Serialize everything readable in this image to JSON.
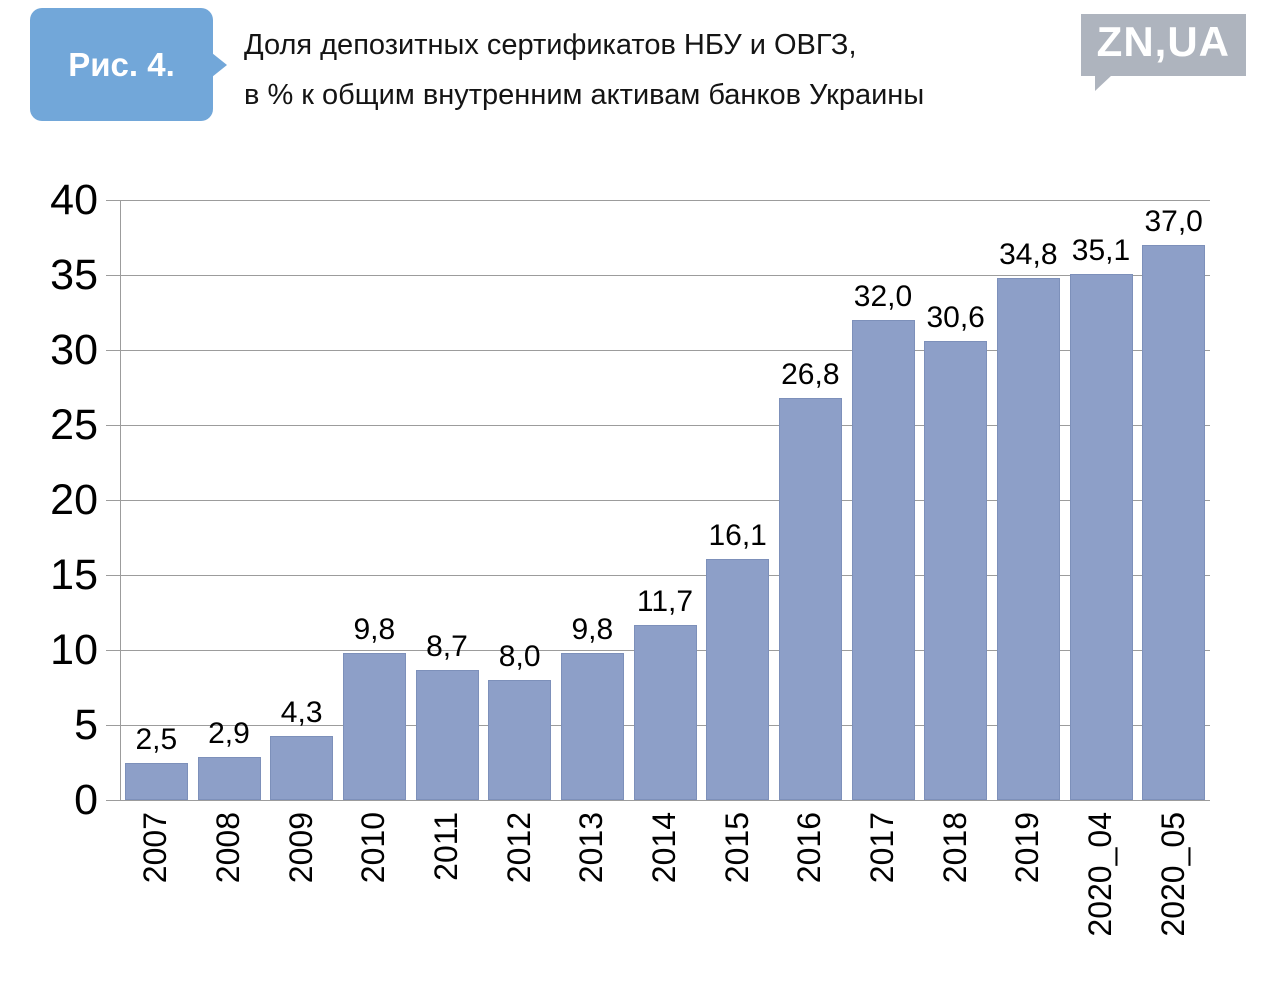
{
  "header": {
    "figure_label": "Рис. 4.",
    "title_lines": [
      "Доля депозитных сертификатов НБУ и ОВГЗ,",
      "в % к общим внутренним активам банков Украины"
    ],
    "logo_text": "ZN,UA"
  },
  "chart_data": {
    "type": "bar",
    "title": "Доля депозитных сертификатов НБУ и ОВГЗ, в % к общим внутренним активам банков Украины",
    "categories": [
      "2007",
      "2008",
      "2009",
      "2010",
      "2011",
      "2012",
      "2013",
      "2014",
      "2015",
      "2016",
      "2017",
      "2018",
      "2019",
      "2020_04",
      "2020_05"
    ],
    "values": [
      2.5,
      2.9,
      4.3,
      9.8,
      8.7,
      8.0,
      9.8,
      11.7,
      16.1,
      26.8,
      32.0,
      30.6,
      34.8,
      35.1,
      37.0
    ],
    "value_labels": [
      "2,5",
      "2,9",
      "4,3",
      "9,8",
      "8,7",
      "8,0",
      "9,8",
      "11,7",
      "16,1",
      "26,8",
      "32,0",
      "30,6",
      "34,8",
      "35,1",
      "37,0"
    ],
    "xlabel": "",
    "ylabel": "",
    "ylim": [
      0,
      40
    ],
    "yticks": [
      0,
      5,
      10,
      15,
      20,
      25,
      30,
      35,
      40
    ],
    "grid": true,
    "legend_position": "none"
  },
  "colors": {
    "figure_label_bg": "#72a7d9",
    "logo_bg": "#aeb4be",
    "bar_color": "#8d9fc8",
    "bar_border": "#7d90ba",
    "grid_color": "#9c9c9c"
  }
}
